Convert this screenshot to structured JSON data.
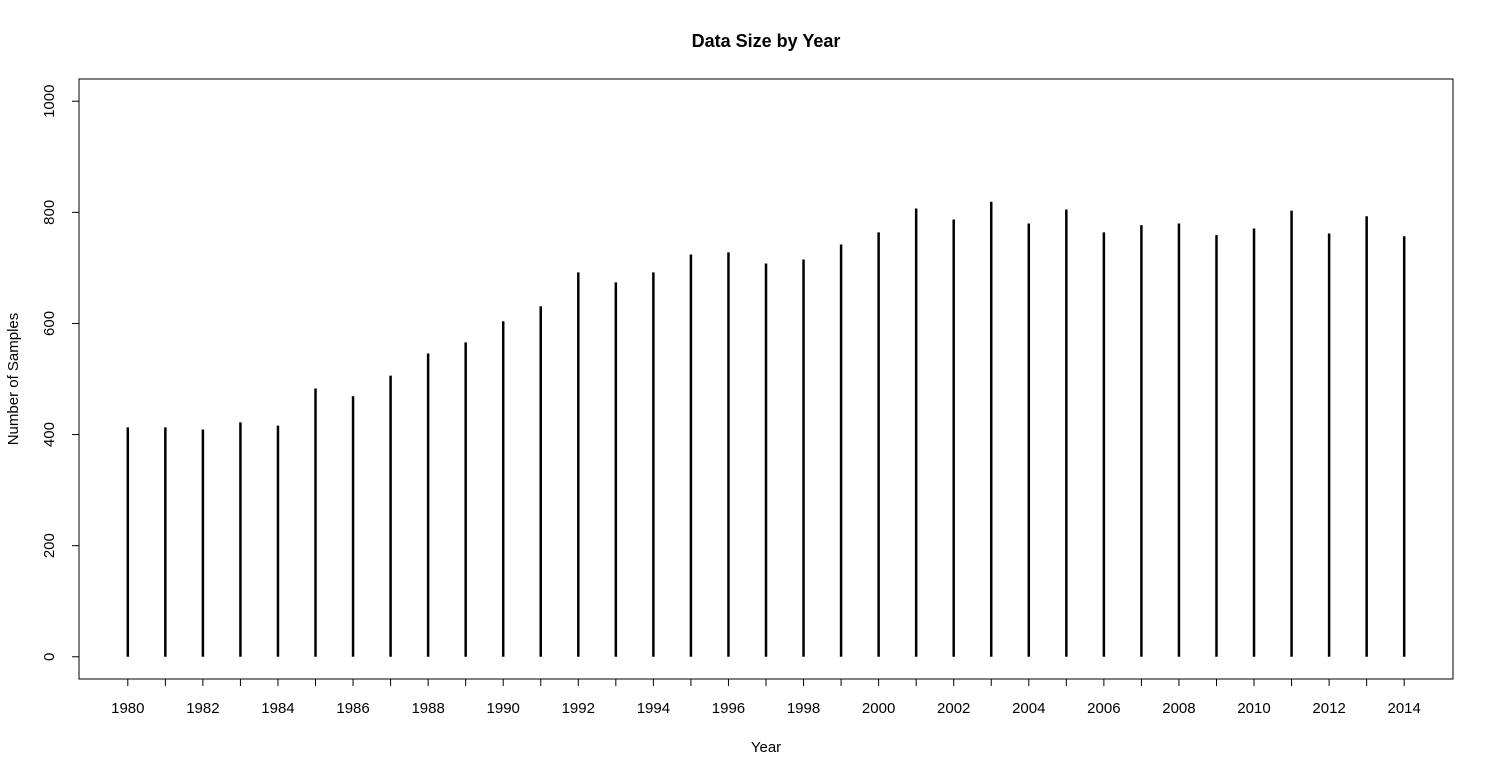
{
  "chart_data": {
    "type": "bar",
    "style": "vertical-lines (histogram type)",
    "title": "Data Size by Year",
    "xlabel": "Year",
    "ylabel": "Number of Samples",
    "x": [
      1980,
      1981,
      1982,
      1983,
      1984,
      1985,
      1986,
      1987,
      1988,
      1989,
      1990,
      1991,
      1992,
      1993,
      1994,
      1995,
      1996,
      1997,
      1998,
      1999,
      2000,
      2001,
      2002,
      2003,
      2004,
      2005,
      2006,
      2007,
      2008,
      2009,
      2010,
      2011,
      2012,
      2013,
      2014
    ],
    "values": [
      413,
      413,
      409,
      422,
      416,
      483,
      469,
      506,
      546,
      566,
      604,
      631,
      692,
      674,
      692,
      724,
      728,
      708,
      715,
      742,
      764,
      807,
      787,
      819,
      780,
      805,
      764,
      777,
      780,
      759,
      771,
      803,
      762,
      793,
      757
    ],
    "xlim": [
      1978.7,
      2015.3
    ],
    "ylim": [
      -40,
      1040
    ],
    "x_ticks": [
      1980,
      1981,
      1982,
      1983,
      1984,
      1985,
      1986,
      1987,
      1988,
      1989,
      1990,
      1991,
      1992,
      1993,
      1994,
      1995,
      1996,
      1997,
      1998,
      1999,
      2000,
      2001,
      2002,
      2003,
      2004,
      2005,
      2006,
      2007,
      2008,
      2009,
      2010,
      2011,
      2012,
      2013,
      2014
    ],
    "x_tick_labels": [
      "1980",
      "",
      "1982",
      "",
      "1984",
      "",
      "1986",
      "",
      "1988",
      "",
      "1990",
      "",
      "1992",
      "",
      "1994",
      "",
      "1996",
      "",
      "1998",
      "",
      "2000",
      "",
      "2002",
      "",
      "2004",
      "",
      "2006",
      "",
      "2008",
      "",
      "2010",
      "",
      "2012",
      "",
      "2014"
    ],
    "y_ticks": [
      0,
      200,
      400,
      600,
      800,
      1000
    ],
    "y_tick_labels": [
      "0",
      "200",
      "400",
      "600",
      "800",
      "1000"
    ],
    "grid": false,
    "legend": "none",
    "line_color": "#000000"
  }
}
